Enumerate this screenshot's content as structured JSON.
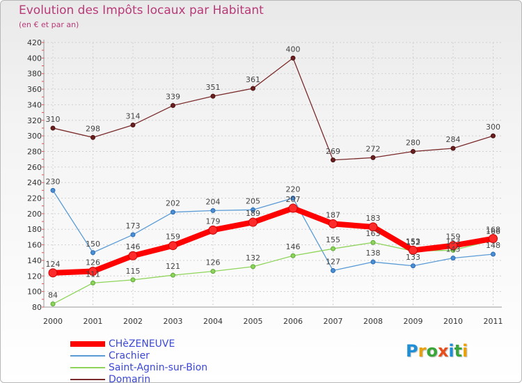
{
  "title": "Evolution des Impôts locaux par Habitant",
  "subtitle": "(en € et par an)",
  "logo": {
    "letters": [
      "P",
      "r",
      "o",
      "x",
      "i",
      "t",
      "i"
    ],
    "colors": [
      "#1e8fd6",
      "#e8a10a",
      "#3aa63a",
      "#e84d1c",
      "#1e8fd6",
      "#3aa63a",
      "#e8a10a"
    ]
  },
  "chart_data": {
    "type": "line",
    "title": "Evolution des Impôts locaux par Habitant",
    "subtitle": "(en € et par an)",
    "xlabel": "",
    "ylabel": "",
    "categories": [
      "2000",
      "2001",
      "2002",
      "2003",
      "2004",
      "2005",
      "2006",
      "2007",
      "2008",
      "2009",
      "2010",
      "2011"
    ],
    "ylim": [
      80,
      420
    ],
    "yticks": [
      80,
      100,
      120,
      140,
      160,
      180,
      200,
      220,
      240,
      260,
      280,
      300,
      320,
      340,
      360,
      380,
      400,
      420
    ],
    "grid": true,
    "legend_position": "bottom-left",
    "series": [
      {
        "name": "CHèZENEUVE",
        "color": "#ff0000",
        "values": [
          124,
          126,
          146,
          159,
          179,
          189,
          207,
          187,
          183,
          153,
          159,
          168
        ],
        "labels": [
          "124",
          "126",
          "146",
          "159",
          "179",
          "189",
          "207",
          "187",
          "183",
          "153",
          "159",
          "168"
        ]
      },
      {
        "name": "Crachier",
        "color": "#5a9bd5",
        "values": [
          230,
          150,
          173,
          202,
          204,
          205,
          220,
          127,
          138,
          133,
          143,
          148
        ],
        "labels": [
          "230",
          "150",
          "173",
          "202",
          "204",
          "205",
          "220",
          "127",
          "138",
          "133",
          "143",
          "148"
        ]
      },
      {
        "name": "Saint-Agnin-sur-Bion",
        "color": "#8ed45a",
        "values": [
          84,
          111,
          115,
          121,
          126,
          132,
          146,
          155,
          163,
          152,
          153,
          166
        ],
        "labels": [
          "84",
          "111",
          "115",
          "121",
          "126",
          "132",
          "146",
          "155",
          "163",
          "152",
          "153",
          "166"
        ]
      },
      {
        "name": "Domarin",
        "color": "#7a2a2a",
        "values": [
          310,
          298,
          314,
          339,
          351,
          361,
          400,
          269,
          272,
          280,
          284,
          300
        ],
        "labels": [
          "310",
          "298",
          "314",
          "339",
          "351",
          "361",
          "400",
          "269",
          "272",
          "280",
          "284",
          "300"
        ]
      }
    ]
  }
}
